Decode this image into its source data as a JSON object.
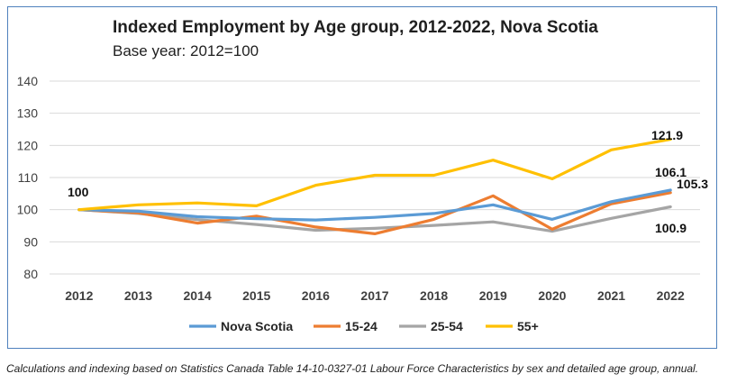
{
  "chart_data": {
    "type": "line",
    "title": "Indexed Employment by Age group, 2012-2022, Nova Scotia",
    "subtitle": "Base year: 2012=100",
    "xlabel": "",
    "ylabel": "",
    "categories": [
      "2012",
      "2013",
      "2014",
      "2015",
      "2016",
      "2017",
      "2018",
      "2019",
      "2020",
      "2021",
      "2022"
    ],
    "ylim": [
      80,
      140
    ],
    "yticks": [
      80,
      90,
      100,
      110,
      120,
      130,
      140
    ],
    "grid": true,
    "legend_position": "bottom",
    "series": [
      {
        "name": "Nova Scotia",
        "color": "#5b9bd5",
        "values": [
          100,
          99.5,
          97.8,
          97.2,
          96.8,
          97.6,
          98.8,
          101.5,
          97.0,
          102.5,
          106.1
        ]
      },
      {
        "name": "15-24",
        "color": "#ed7d31",
        "values": [
          100,
          99.0,
          95.8,
          98.0,
          94.6,
          92.5,
          97.0,
          104.3,
          93.9,
          101.8,
          105.3
        ]
      },
      {
        "name": "25-54",
        "color": "#a5a5a5",
        "values": [
          100,
          98.8,
          96.9,
          95.4,
          93.6,
          94.2,
          95.1,
          96.2,
          93.3,
          97.3,
          100.9
        ]
      },
      {
        "name": "55+",
        "color": "#ffc000",
        "values": [
          100,
          101.5,
          102.1,
          101.2,
          107.6,
          110.7,
          110.7,
          115.4,
          109.6,
          118.6,
          121.9
        ]
      }
    ],
    "annotations": [
      "100",
      "121.9",
      "106.1",
      "105.3",
      "100.9"
    ]
  },
  "footnote": "Calculations and indexing based on Statistics Canada Table 14-10-0327-01 Labour Force Characteristics by sex and detailed age group, annual."
}
